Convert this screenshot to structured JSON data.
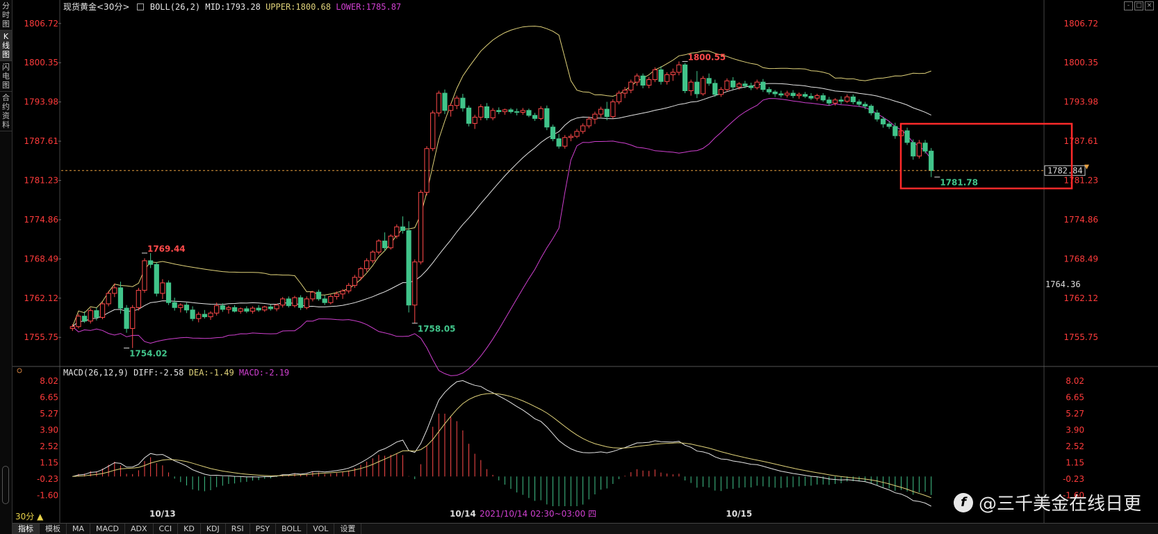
{
  "left_tabs": [
    {
      "label": "分\n时\n图",
      "active": false
    },
    {
      "label": "K\n线\n图",
      "active": true
    },
    {
      "label": "闪\n电\n图",
      "active": false
    },
    {
      "label": "合\n约\n资\n料",
      "active": false
    }
  ],
  "header": {
    "title": "现货黄金<30分>",
    "boll_label": "BOLL(26,2)",
    "mid": "MID:1793.28",
    "upper": "UPPER:1800.68",
    "lower": "LOWER:1785.87"
  },
  "macd_header": {
    "label": "MACD(26,12,9)",
    "diff": "DIFF:-2.58",
    "dea": "DEA:-1.49",
    "macd": "MACD:-2.19"
  },
  "top_buttons": [
    "-",
    "□",
    "×"
  ],
  "period_button": "30分 ▲",
  "bottom_tabs": [
    {
      "label": "指标",
      "active": true
    },
    {
      "label": "模板",
      "active": false
    },
    {
      "label": "MA",
      "active": false
    },
    {
      "label": "MACD",
      "active": false
    },
    {
      "label": "ADX",
      "active": false
    },
    {
      "label": "CCI",
      "active": false
    },
    {
      "label": "KD",
      "active": false
    },
    {
      "label": "KDJ",
      "active": false
    },
    {
      "label": "RSI",
      "active": false
    },
    {
      "label": "PSY",
      "active": false
    },
    {
      "label": "BOLL",
      "active": false
    },
    {
      "label": "VOL",
      "active": false
    },
    {
      "label": "设置",
      "active": false
    }
  ],
  "watermark": "@三千美金在线日更",
  "colors": {
    "up": "#ff4a4a",
    "down": "#41c48a",
    "axis_text": "#ff3b3b",
    "boll_mid": "#e6e6e6",
    "boll_upper": "#e0d27a",
    "boll_lower": "#d040d0",
    "diff": "#e6e6e6",
    "dea": "#e0d27a",
    "price_line": "#e8a040",
    "highlight": "#ff2a2a"
  },
  "chart_data": [
    {
      "type": "candlestick",
      "title": "现货黄金<30分>",
      "ylim": [
        1751.6,
        1808.5
      ],
      "y_ticks": [
        "1806.72",
        "1800.35",
        "1793.98",
        "1787.61",
        "1781.23",
        "1774.86",
        "1768.49",
        "1762.12",
        "1755.75"
      ],
      "x_labels": [
        "10/13",
        "10/14",
        "10/15"
      ],
      "x_label_index": [
        15,
        65,
        111
      ],
      "current_price": "1782.84",
      "side_label": "1764.36",
      "annotations": [
        {
          "text": "1769.44",
          "index": 12,
          "price": 1769.44,
          "kind": "high"
        },
        {
          "text": "1754.02",
          "index": 9,
          "price": 1754.02,
          "kind": "low"
        },
        {
          "text": "1758.05",
          "index": 57,
          "price": 1758.05,
          "kind": "low"
        },
        {
          "text": "1800.55",
          "index": 102,
          "price": 1800.55,
          "kind": "high"
        },
        {
          "text": "1781.78",
          "index": 144,
          "price": 1781.78,
          "kind": "low"
        }
      ],
      "crosshair_label": "2021/10/14 02:30~03:00 四",
      "candles": [
        [
          1757.2,
          1757.9,
          1756.8,
          1757.5
        ],
        [
          1757.5,
          1759.6,
          1757.2,
          1759.2
        ],
        [
          1759.2,
          1760.0,
          1758.1,
          1758.4
        ],
        [
          1758.4,
          1760.5,
          1758.0,
          1760.1
        ],
        [
          1760.1,
          1760.6,
          1758.5,
          1759.0
        ],
        [
          1759.0,
          1761.5,
          1758.7,
          1761.2
        ],
        [
          1761.2,
          1763.3,
          1760.8,
          1762.9
        ],
        [
          1762.9,
          1764.5,
          1762.3,
          1763.8
        ],
        [
          1763.8,
          1764.8,
          1759.6,
          1760.5
        ],
        [
          1760.5,
          1761.0,
          1756.5,
          1757.2
        ],
        [
          1757.2,
          1761.0,
          1754.02,
          1760.6
        ],
        [
          1760.6,
          1763.8,
          1760.1,
          1763.4
        ],
        [
          1763.4,
          1768.6,
          1763.0,
          1768.2
        ],
        [
          1768.2,
          1769.44,
          1767.0,
          1767.6
        ],
        [
          1767.6,
          1768.0,
          1762.4,
          1762.9
        ],
        [
          1762.9,
          1765.2,
          1762.0,
          1764.6
        ],
        [
          1764.6,
          1765.0,
          1761.0,
          1761.4
        ],
        [
          1761.4,
          1762.2,
          1760.1,
          1760.6
        ],
        [
          1760.6,
          1761.3,
          1759.8,
          1761.0
        ],
        [
          1761.0,
          1761.4,
          1759.7,
          1760.2
        ],
        [
          1760.2,
          1760.8,
          1758.4,
          1758.8
        ],
        [
          1758.8,
          1759.9,
          1758.2,
          1759.5
        ],
        [
          1759.5,
          1760.2,
          1758.8,
          1759.1
        ],
        [
          1759.1,
          1760.0,
          1758.6,
          1759.7
        ],
        [
          1759.7,
          1761.4,
          1759.3,
          1760.9
        ],
        [
          1760.9,
          1761.3,
          1759.9,
          1760.3
        ],
        [
          1760.3,
          1760.9,
          1759.6,
          1760.6
        ],
        [
          1760.6,
          1761.0,
          1759.8,
          1760.0
        ],
        [
          1760.0,
          1760.6,
          1759.6,
          1760.4
        ],
        [
          1760.4,
          1760.8,
          1759.7,
          1760.0
        ],
        [
          1760.0,
          1760.8,
          1759.6,
          1760.5
        ],
        [
          1760.5,
          1761.0,
          1759.9,
          1760.2
        ],
        [
          1760.2,
          1760.9,
          1759.9,
          1760.7
        ],
        [
          1760.7,
          1761.1,
          1760.1,
          1760.4
        ],
        [
          1760.4,
          1761.2,
          1760.0,
          1761.0
        ],
        [
          1761.0,
          1762.3,
          1760.6,
          1762.0
        ],
        [
          1762.0,
          1762.4,
          1760.6,
          1760.9
        ],
        [
          1760.9,
          1762.5,
          1760.6,
          1762.2
        ],
        [
          1762.2,
          1762.6,
          1760.2,
          1760.6
        ],
        [
          1760.6,
          1762.4,
          1760.3,
          1762.0
        ],
        [
          1762.0,
          1763.3,
          1761.6,
          1763.1
        ],
        [
          1763.1,
          1763.5,
          1761.7,
          1762.0
        ],
        [
          1762.0,
          1762.6,
          1761.0,
          1761.4
        ],
        [
          1761.4,
          1762.7,
          1761.1,
          1762.4
        ],
        [
          1762.4,
          1763.2,
          1761.9,
          1762.8
        ],
        [
          1762.8,
          1763.6,
          1762.0,
          1763.3
        ],
        [
          1763.3,
          1764.6,
          1762.9,
          1764.2
        ],
        [
          1764.2,
          1765.9,
          1763.8,
          1765.5
        ],
        [
          1765.5,
          1767.2,
          1765.0,
          1766.9
        ],
        [
          1766.9,
          1768.6,
          1766.4,
          1768.2
        ],
        [
          1768.2,
          1769.9,
          1767.8,
          1769.6
        ],
        [
          1769.6,
          1771.7,
          1769.2,
          1771.4
        ],
        [
          1771.4,
          1772.8,
          1769.8,
          1770.3
        ],
        [
          1770.3,
          1772.5,
          1770.0,
          1772.2
        ],
        [
          1772.2,
          1774.1,
          1771.8,
          1773.7
        ],
        [
          1773.7,
          1775.4,
          1772.6,
          1773.1
        ],
        [
          1773.1,
          1774.6,
          1759.8,
          1761.0
        ],
        [
          1761.0,
          1768.4,
          1758.05,
          1768.0
        ],
        [
          1768.0,
          1779.7,
          1767.6,
          1779.3
        ],
        [
          1779.3,
          1786.8,
          1778.8,
          1786.4
        ],
        [
          1786.4,
          1792.6,
          1786.0,
          1792.2
        ],
        [
          1792.2,
          1795.8,
          1791.6,
          1795.4
        ],
        [
          1795.4,
          1796.0,
          1792.0,
          1792.6
        ],
        [
          1792.6,
          1793.8,
          1791.6,
          1793.4
        ],
        [
          1793.4,
          1795.0,
          1792.8,
          1794.6
        ],
        [
          1794.6,
          1795.3,
          1792.4,
          1793.0
        ],
        [
          1793.0,
          1793.4,
          1790.0,
          1790.5
        ],
        [
          1790.5,
          1791.9,
          1789.6,
          1791.5
        ],
        [
          1791.5,
          1793.6,
          1791.0,
          1793.2
        ],
        [
          1793.2,
          1793.8,
          1791.0,
          1791.4
        ],
        [
          1791.4,
          1793.0,
          1791.0,
          1792.6
        ],
        [
          1792.6,
          1793.1,
          1792.0,
          1792.4
        ],
        [
          1792.4,
          1792.9,
          1791.9,
          1792.7
        ],
        [
          1792.7,
          1793.0,
          1792.1,
          1792.4
        ],
        [
          1792.4,
          1792.9,
          1791.8,
          1792.3
        ],
        [
          1792.3,
          1793.0,
          1791.9,
          1792.6
        ],
        [
          1792.6,
          1792.9,
          1791.5,
          1791.8
        ],
        [
          1791.8,
          1792.2,
          1790.9,
          1791.3
        ],
        [
          1791.3,
          1793.3,
          1791.0,
          1792.9
        ],
        [
          1792.9,
          1793.4,
          1789.4,
          1789.9
        ],
        [
          1789.9,
          1790.3,
          1787.6,
          1788.0
        ],
        [
          1788.0,
          1788.8,
          1786.4,
          1786.8
        ],
        [
          1786.8,
          1788.6,
          1786.4,
          1788.2
        ],
        [
          1788.2,
          1788.8,
          1787.6,
          1788.4
        ],
        [
          1788.4,
          1789.6,
          1788.1,
          1789.2
        ],
        [
          1789.2,
          1790.5,
          1788.8,
          1790.1
        ],
        [
          1790.1,
          1791.6,
          1789.7,
          1791.2
        ],
        [
          1791.2,
          1792.4,
          1790.4,
          1792.0
        ],
        [
          1792.0,
          1793.2,
          1791.5,
          1792.8
        ],
        [
          1792.8,
          1794.0,
          1791.0,
          1791.6
        ],
        [
          1791.6,
          1794.4,
          1791.3,
          1794.0
        ],
        [
          1794.0,
          1795.8,
          1793.6,
          1795.4
        ],
        [
          1795.4,
          1796.4,
          1794.6,
          1795.9
        ],
        [
          1795.9,
          1797.6,
          1795.4,
          1797.2
        ],
        [
          1797.2,
          1798.6,
          1796.6,
          1798.2
        ],
        [
          1798.2,
          1798.6,
          1796.2,
          1796.7
        ],
        [
          1796.7,
          1798.0,
          1796.2,
          1797.6
        ],
        [
          1797.6,
          1799.6,
          1797.2,
          1799.2
        ],
        [
          1799.2,
          1799.8,
          1796.8,
          1797.3
        ],
        [
          1797.3,
          1798.8,
          1796.8,
          1798.4
        ],
        [
          1798.4,
          1799.4,
          1797.4,
          1798.8
        ],
        [
          1798.8,
          1800.55,
          1798.3,
          1800.0
        ],
        [
          1800.0,
          1800.3,
          1795.4,
          1795.8
        ],
        [
          1795.8,
          1797.6,
          1795.0,
          1797.2
        ],
        [
          1797.2,
          1799.0,
          1794.6,
          1795.3
        ],
        [
          1795.3,
          1798.2,
          1795.0,
          1797.8
        ],
        [
          1797.8,
          1798.6,
          1796.6,
          1797.0
        ],
        [
          1797.0,
          1797.6,
          1794.8,
          1795.2
        ],
        [
          1795.2,
          1796.4,
          1794.8,
          1796.0
        ],
        [
          1796.0,
          1797.8,
          1795.7,
          1797.4
        ],
        [
          1797.4,
          1798.0,
          1796.0,
          1796.4
        ],
        [
          1796.4,
          1797.2,
          1796.0,
          1796.9
        ],
        [
          1796.9,
          1797.4,
          1796.2,
          1796.6
        ],
        [
          1796.6,
          1797.1,
          1795.9,
          1796.3
        ],
        [
          1796.3,
          1797.6,
          1796.0,
          1797.2
        ],
        [
          1797.2,
          1797.7,
          1795.6,
          1796.0
        ],
        [
          1796.0,
          1796.4,
          1795.2,
          1795.6
        ],
        [
          1795.6,
          1795.9,
          1794.8,
          1795.3
        ],
        [
          1795.3,
          1795.8,
          1794.7,
          1795.1
        ],
        [
          1795.1,
          1795.8,
          1794.7,
          1795.4
        ],
        [
          1795.4,
          1795.9,
          1794.6,
          1795.0
        ],
        [
          1795.0,
          1795.5,
          1794.5,
          1795.2
        ],
        [
          1795.2,
          1795.6,
          1794.6,
          1794.9
        ],
        [
          1794.9,
          1795.4,
          1794.3,
          1794.6
        ],
        [
          1794.6,
          1795.3,
          1794.2,
          1795.0
        ],
        [
          1795.0,
          1795.4,
          1794.0,
          1794.3
        ],
        [
          1794.3,
          1794.8,
          1793.4,
          1793.8
        ],
        [
          1793.8,
          1794.6,
          1793.4,
          1794.3
        ],
        [
          1794.3,
          1794.9,
          1793.6,
          1794.1
        ],
        [
          1794.1,
          1795.2,
          1793.8,
          1794.8
        ],
        [
          1794.8,
          1795.2,
          1793.6,
          1794.0
        ],
        [
          1794.0,
          1794.4,
          1793.2,
          1793.6
        ],
        [
          1793.6,
          1794.0,
          1792.8,
          1793.3
        ],
        [
          1793.3,
          1793.6,
          1791.8,
          1792.2
        ],
        [
          1792.2,
          1792.7,
          1790.8,
          1791.2
        ],
        [
          1791.2,
          1791.6,
          1789.8,
          1790.4
        ],
        [
          1790.4,
          1790.8,
          1789.6,
          1790.0
        ],
        [
          1790.0,
          1790.6,
          1788.0,
          1788.5
        ],
        [
          1788.5,
          1789.8,
          1787.8,
          1789.3
        ],
        [
          1789.3,
          1789.8,
          1787.0,
          1787.4
        ],
        [
          1787.4,
          1787.9,
          1784.6,
          1785.2
        ],
        [
          1785.2,
          1787.8,
          1784.8,
          1787.3
        ],
        [
          1787.3,
          1787.8,
          1785.6,
          1786.0
        ],
        [
          1786.0,
          1786.5,
          1781.78,
          1782.84
        ]
      ]
    },
    {
      "type": "macd",
      "title": "MACD(26,12,9)",
      "ylim": [
        -2.5,
        8.5
      ],
      "y_ticks": [
        "8.02",
        "6.65",
        "5.27",
        "3.90",
        "2.52",
        "1.15",
        "-0.23",
        "-1.60"
      ],
      "params": [
        26,
        12,
        9
      ]
    }
  ]
}
